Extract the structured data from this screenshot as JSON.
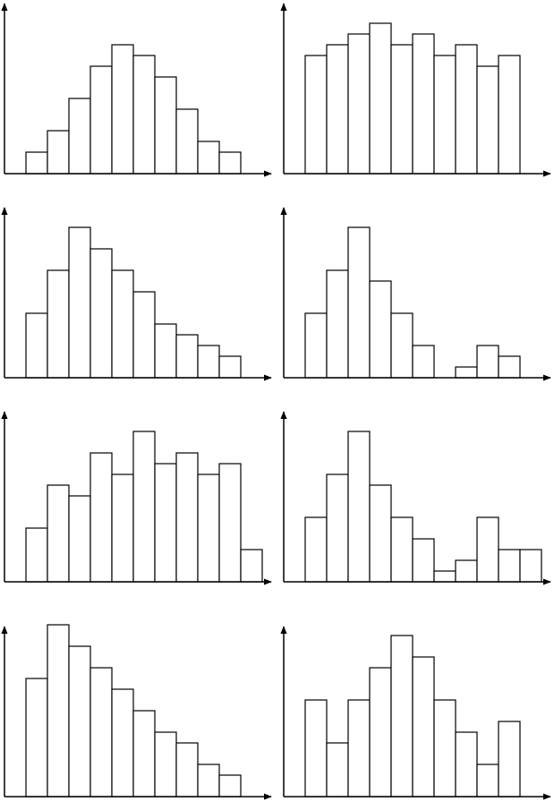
{
  "chart_data": [
    {
      "type": "bar",
      "values": [
        2,
        4,
        7,
        10,
        12,
        11,
        9,
        6,
        3,
        2
      ],
      "color": "#000000",
      "ylim": [
        0,
        16
      ]
    },
    {
      "type": "bar",
      "values": [
        11,
        12,
        13,
        14,
        12,
        13,
        11,
        12,
        10,
        11
      ],
      "color": "#000000",
      "ylim": [
        0,
        16
      ]
    },
    {
      "type": "bar",
      "values": [
        6,
        10,
        14,
        12,
        10,
        8,
        5,
        4,
        3,
        2
      ],
      "color": "#000000",
      "ylim": [
        0,
        16
      ]
    },
    {
      "type": "bar",
      "values": [
        6,
        10,
        14,
        9,
        6,
        3,
        0,
        1,
        3,
        2
      ],
      "color": "#000000",
      "ylim": [
        0,
        16
      ]
    },
    {
      "type": "bar",
      "values": [
        5,
        9,
        8,
        12,
        10,
        14,
        11,
        12,
        10,
        11,
        3
      ],
      "color": "#000000",
      "ylim": [
        0,
        16
      ]
    },
    {
      "type": "bar",
      "values": [
        6,
        10,
        14,
        9,
        6,
        4,
        1,
        2,
        6,
        3,
        3
      ],
      "color": "#000000",
      "ylim": [
        0,
        16
      ]
    },
    {
      "type": "bar",
      "values": [
        11,
        16,
        14,
        12,
        10,
        8,
        6,
        5,
        3,
        2
      ],
      "color": "#000000",
      "ylim": [
        0,
        16
      ]
    },
    {
      "type": "bar",
      "values": [
        9,
        5,
        9,
        12,
        15,
        13,
        9,
        6,
        3,
        7
      ],
      "color": "#000000",
      "ylim": [
        0,
        16
      ]
    }
  ]
}
